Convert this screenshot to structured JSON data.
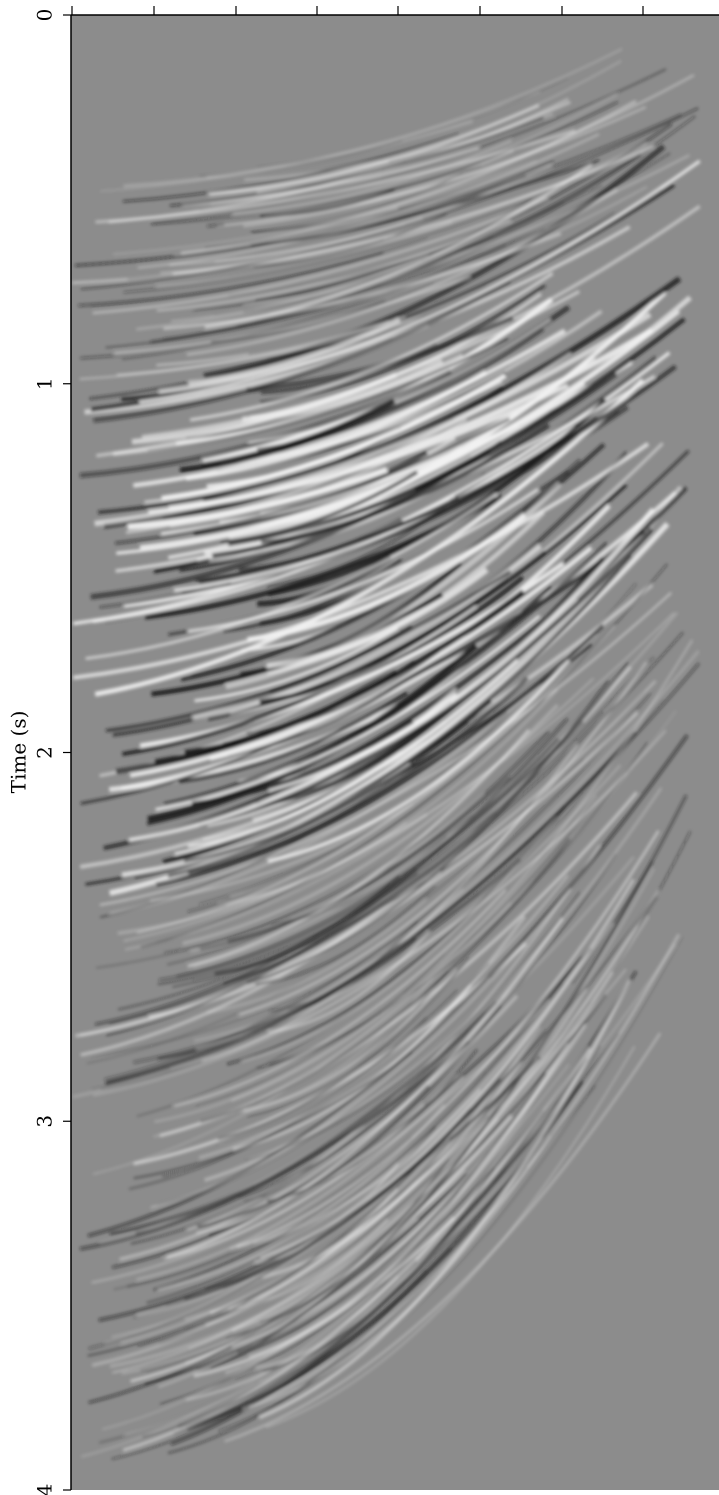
{
  "chart_data": {
    "type": "image",
    "ylabel": "Time (s)",
    "ylim": [
      0,
      4
    ],
    "yticks": [
      0,
      1,
      2,
      3,
      4
    ],
    "background": "#8c8c8c"
  }
}
